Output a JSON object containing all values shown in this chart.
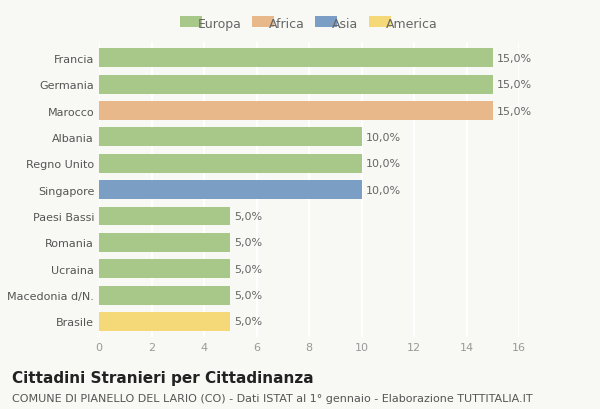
{
  "categories": [
    "Francia",
    "Germania",
    "Marocco",
    "Albania",
    "Regno Unito",
    "Singapore",
    "Paesi Bassi",
    "Romania",
    "Ucraina",
    "Macedonia d/N.",
    "Brasile"
  ],
  "values": [
    15.0,
    15.0,
    15.0,
    10.0,
    10.0,
    10.0,
    5.0,
    5.0,
    5.0,
    5.0,
    5.0
  ],
  "continents": [
    "Europa",
    "Europa",
    "Africa",
    "Europa",
    "Europa",
    "Asia",
    "Europa",
    "Europa",
    "Europa",
    "Europa",
    "America"
  ],
  "continent_colors": {
    "Europa": "#a8c88a",
    "Africa": "#e8b88a",
    "Asia": "#7b9fc4",
    "America": "#f5d878"
  },
  "legend_order": [
    "Europa",
    "Africa",
    "Asia",
    "America"
  ],
  "xlim": [
    0,
    16
  ],
  "xticks": [
    0,
    2,
    4,
    6,
    8,
    10,
    12,
    14,
    16
  ],
  "title": "Cittadini Stranieri per Cittadinanza",
  "subtitle": "COMUNE DI PIANELLO DEL LARIO (CO) - Dati ISTAT al 1° gennaio - Elaborazione TUTTITALIA.IT",
  "background_color": "#f8f8f5",
  "bar_height": 0.72,
  "grid_color": "#ffffff",
  "title_fontsize": 11,
  "subtitle_fontsize": 8,
  "label_fontsize": 8,
  "tick_fontsize": 8,
  "legend_fontsize": 9,
  "label_color": "#666666",
  "ytick_color": "#555555"
}
